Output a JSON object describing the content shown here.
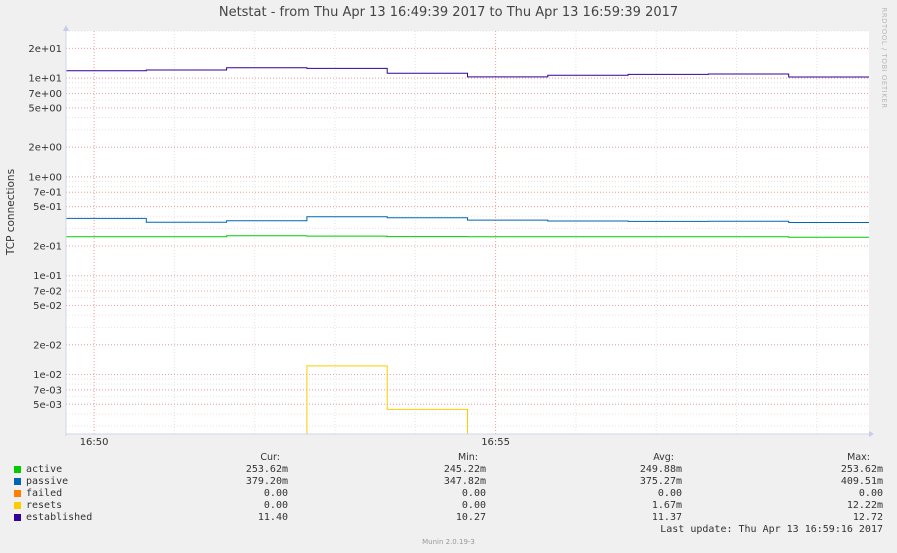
{
  "title": "Netstat - from Thu Apr 13 16:49:39 2017 to Thu Apr 13 16:59:39 2017",
  "watermark": "RRDTOOL / TOBI OETIKER",
  "footer": "Munin 2.0.19-3",
  "last_update": "Last update:  Thu Apr 13 16:59:16 2017",
  "legend": {
    "headers": [
      "Cur:",
      "Min:",
      "Avg:",
      "Max:"
    ],
    "rows": [
      {
        "name": "active",
        "color": "#00cc00",
        "cur": "253.62m",
        "min": "245.22m",
        "avg": "249.88m",
        "max": "253.62m"
      },
      {
        "name": "passive",
        "color": "#0066b3",
        "cur": "379.20m",
        "min": "347.82m",
        "avg": "375.27m",
        "max": "409.51m"
      },
      {
        "name": "failed",
        "color": "#ff8000",
        "cur": "0.00",
        "min": "0.00",
        "avg": "0.00",
        "max": "0.00"
      },
      {
        "name": "resets",
        "color": "#ffcc00",
        "cur": "0.00",
        "min": "0.00",
        "avg": "1.67m",
        "max": "12.22m"
      },
      {
        "name": "established",
        "color": "#330099",
        "cur": "11.40",
        "min": "10.27",
        "avg": "11.37",
        "max": "12.72"
      }
    ]
  },
  "chart_data": {
    "type": "line",
    "title": "Netstat - from Thu Apr 13 16:49:39 2017 to Thu Apr 13 16:59:39 2017",
    "xlabel": "",
    "ylabel": "TCP connections",
    "yscale": "log",
    "ylim": [
      0.0025,
      30
    ],
    "xlim": [
      "16:49:39",
      "16:59:39"
    ],
    "x_ticks": [
      "16:50",
      "16:55"
    ],
    "y_ticks": [
      "2e+01",
      "1e+01",
      "7e+00",
      "5e+00",
      "2e+00",
      "1e+00",
      "7e-01",
      "5e-01",
      "2e-01",
      "1e-01",
      "7e-02",
      "5e-02",
      "2e-02",
      "1e-02",
      "7e-03",
      "5e-03"
    ],
    "grid": true,
    "x": [
      "16:49:39",
      "16:50:39",
      "16:51:39",
      "16:52:39",
      "16:53:39",
      "16:54:39",
      "16:55:39",
      "16:56:39",
      "16:57:39",
      "16:58:39",
      "16:59:39"
    ],
    "series": [
      {
        "name": "active",
        "color": "#00cc00",
        "values": [
          0.248,
          0.248,
          0.254,
          0.252,
          0.249,
          0.248,
          0.248,
          0.248,
          0.248,
          0.245,
          0.2536
        ]
      },
      {
        "name": "passive",
        "color": "#0066b3",
        "values": [
          0.38,
          0.348,
          0.36,
          0.395,
          0.386,
          0.366,
          0.358,
          0.355,
          0.356,
          0.346,
          0.3792
        ]
      },
      {
        "name": "failed",
        "color": "#ff8000",
        "values": [
          0,
          0,
          0,
          0,
          0,
          0,
          0,
          0,
          0,
          0,
          0
        ]
      },
      {
        "name": "resets",
        "color": "#ffcc00",
        "values": [
          0,
          0,
          0,
          0.01222,
          0.00444,
          0,
          0,
          0,
          0,
          0,
          0
        ]
      },
      {
        "name": "established",
        "color": "#330099",
        "values": [
          11.9,
          12.1,
          12.72,
          12.55,
          11.2,
          10.3,
          10.7,
          10.9,
          11.0,
          10.27,
          11.4
        ]
      }
    ]
  }
}
